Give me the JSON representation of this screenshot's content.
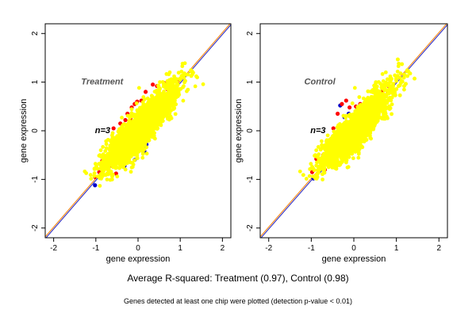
{
  "chart_data": [
    {
      "type": "scatter",
      "title": "Treatment",
      "annotation": "n=3",
      "xlabel": "gene expression",
      "ylabel": "gene expression",
      "xlim": [
        -2.2,
        2.2
      ],
      "ylim": [
        -2.2,
        2.2
      ],
      "xticks": [
        -2,
        -1,
        0,
        1,
        2
      ],
      "yticks": [
        -2,
        -1,
        0,
        1,
        2
      ],
      "reference_lines": [
        {
          "color": "#FF8000",
          "intercept": 0.02,
          "slope": 1
        },
        {
          "color": "#2020C0",
          "intercept": -0.02,
          "slope": 1
        }
      ],
      "series": [
        {
          "color": "#0000CC",
          "points": [
            [
              -1.02,
              -1.12
            ],
            [
              -0.88,
              -0.95
            ],
            [
              -0.6,
              -0.62
            ],
            [
              -0.25,
              -0.35
            ],
            [
              0.05,
              -0.12
            ],
            [
              0.3,
              0.22
            ],
            [
              0.5,
              0.38
            ],
            [
              0.12,
              -0.35
            ],
            [
              0.2,
              -0.28
            ],
            [
              0.72,
              0.58
            ],
            [
              0.82,
              0.72
            ],
            [
              -0.5,
              -0.65
            ],
            [
              -0.08,
              -0.6
            ],
            [
              -0.32,
              -0.72
            ],
            [
              0.15,
              -0.42
            ]
          ]
        },
        {
          "color": "#FF0000",
          "points": [
            [
              -1.02,
              -0.95
            ],
            [
              -0.85,
              -0.62
            ],
            [
              -0.78,
              -0.55
            ],
            [
              -0.52,
              -0.88
            ],
            [
              -0.42,
              0.15
            ],
            [
              -0.3,
              0.22
            ],
            [
              -0.25,
              0.35
            ],
            [
              -0.15,
              0.48
            ],
            [
              -0.08,
              0.55
            ],
            [
              -0.02,
              0.6
            ],
            [
              0.08,
              0.62
            ],
            [
              0.18,
              0.8
            ],
            [
              0.35,
              0.95
            ],
            [
              0.45,
              0.92
            ],
            [
              0.62,
              0.98
            ],
            [
              0.7,
              0.85
            ],
            [
              0.92,
              1.02
            ],
            [
              -0.62,
              -0.72
            ],
            [
              -0.35,
              -0.55
            ],
            [
              -0.12,
              -0.45
            ],
            [
              0.22,
              -0.05
            ],
            [
              0.4,
              0.2
            ],
            [
              0.55,
              0.3
            ],
            [
              -0.45,
              -0.2
            ],
            [
              -0.58,
              0.05
            ],
            [
              0.62,
              0.72
            ],
            [
              -0.92,
              -0.85
            ],
            [
              -0.18,
              0.25
            ],
            [
              0.28,
              0.45
            ],
            [
              0.78,
              0.92
            ]
          ]
        }
      ],
      "dense_color": "#FFFF00"
    },
    {
      "type": "scatter",
      "title": "Control",
      "annotation": "n=3",
      "xlabel": "gene expression",
      "ylabel": "gene expression",
      "xlim": [
        -2.2,
        2.2
      ],
      "ylim": [
        -2.2,
        2.2
      ],
      "xticks": [
        -2,
        -1,
        0,
        1,
        2
      ],
      "yticks": [
        -2,
        -1,
        0,
        1,
        2
      ],
      "reference_lines": [
        {
          "color": "#FF8000",
          "intercept": 0.02,
          "slope": 1
        },
        {
          "color": "#2020C0",
          "intercept": -0.02,
          "slope": 1
        }
      ],
      "series": [
        {
          "color": "#0000CC",
          "points": [
            [
              -0.32,
              0.52
            ],
            [
              -0.22,
              0.28
            ],
            [
              -0.12,
              0.35
            ],
            [
              -0.05,
              0.1
            ],
            [
              0.12,
              0.42
            ],
            [
              0.25,
              0.3
            ],
            [
              0.62,
              0.62
            ],
            [
              -0.95,
              -0.98
            ],
            [
              -0.8,
              -0.82
            ],
            [
              0.45,
              0.45
            ],
            [
              -0.5,
              -0.25
            ],
            [
              0.08,
              0.18
            ],
            [
              -0.15,
              -0.2
            ]
          ]
        },
        {
          "color": "#FF0000",
          "points": [
            [
              -0.98,
              -0.85
            ],
            [
              -0.88,
              -0.58
            ],
            [
              -0.72,
              -0.5
            ],
            [
              -0.68,
              -0.8
            ],
            [
              -0.42,
              -0.15
            ],
            [
              -0.38,
              0.35
            ],
            [
              -0.28,
              0.55
            ],
            [
              -0.18,
              0.62
            ],
            [
              -0.1,
              0.48
            ],
            [
              0.05,
              0.5
            ],
            [
              0.15,
              0.55
            ],
            [
              0.22,
              0.25
            ],
            [
              0.3,
              0.38
            ],
            [
              0.42,
              0.55
            ],
            [
              0.55,
              0.7
            ],
            [
              0.68,
              0.82
            ],
            [
              -0.55,
              -0.62
            ],
            [
              -0.25,
              -0.42
            ],
            [
              0.02,
              -0.18
            ],
            [
              0.35,
              0.1
            ],
            [
              -0.8,
              -0.75
            ],
            [
              0.82,
              0.92
            ],
            [
              -0.48,
              0.05
            ],
            [
              0.1,
              0.32
            ]
          ]
        }
      ],
      "dense_color": "#FFFF00"
    }
  ],
  "captions": {
    "main": "Average R-squared: Treatment (0.97), Control (0.98)",
    "sub": "Genes detected at least one chip were plotted (detection p-value < 0.01)"
  }
}
